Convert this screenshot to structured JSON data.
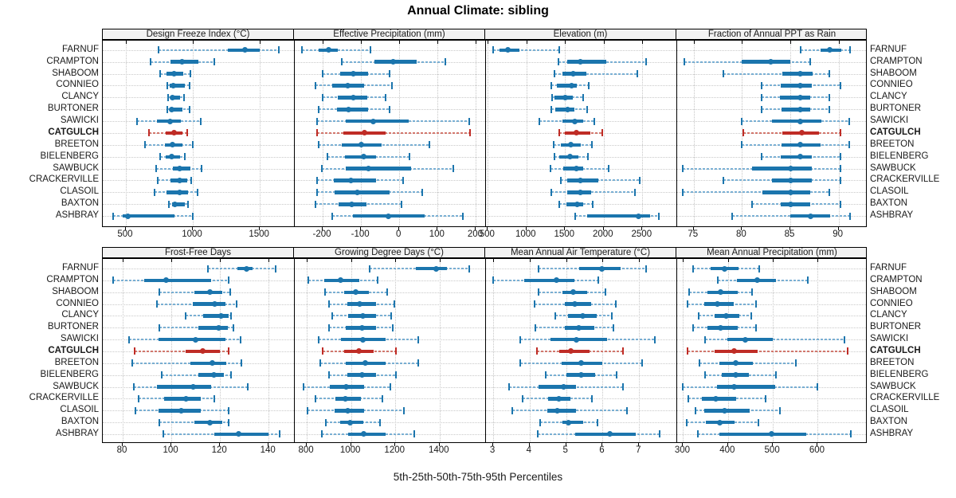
{
  "title": "Annual Climate: sibling",
  "footer": "5th-25th-50th-75th-95th Percentiles",
  "percentiles": [
    "5th",
    "25th",
    "50th",
    "75th",
    "95th"
  ],
  "stations": [
    "FARNUF",
    "CRAMPTON",
    "SHABOOM",
    "CONNIEO",
    "CLANCY",
    "BURTONER",
    "SAWICKI",
    "CATGULCH",
    "BREETON",
    "BIELENBERG",
    "SAWBUCK",
    "CRACKERVILLE",
    "CLASOIL",
    "BAXTON",
    "ASHBRAY"
  ],
  "highlight_station": "CATGULCH",
  "colors": {
    "series": "#1b75ad",
    "series_light": "#79afd3",
    "highlight": "#bf2c26",
    "highlight_light": "#d2766c",
    "grid": "#c6c6c6",
    "strip_bg": "#f2f2f2",
    "border": "#000000"
  },
  "chart_data": [
    {
      "type": "dotplot-interval",
      "title": "Design Freeze Index (°C)",
      "ticks": [
        500,
        1000,
        1500
      ],
      "xlim": [
        328,
        1755
      ],
      "values": [
        [
          745,
          1260,
          1390,
          1500,
          1645
        ],
        [
          685,
          835,
          920,
          1040,
          1160
        ],
        [
          755,
          805,
          860,
          930,
          980
        ],
        [
          810,
          830,
          855,
          940,
          975
        ],
        [
          815,
          833,
          848,
          903,
          933
        ],
        [
          810,
          828,
          843,
          923,
          978
        ],
        [
          585,
          735,
          833,
          913,
          1060
        ],
        [
          670,
          800,
          863,
          923,
          958
        ],
        [
          645,
          790,
          847,
          923,
          1000
        ],
        [
          755,
          795,
          843,
          905,
          938
        ],
        [
          725,
          850,
          900,
          980,
          1065
        ],
        [
          740,
          835,
          903,
          957,
          990
        ],
        [
          715,
          803,
          899,
          962,
          1037
        ],
        [
          823,
          843,
          869,
          940,
          966
        ],
        [
          405,
          478,
          516,
          863,
          998
        ]
      ]
    },
    {
      "type": "dotplot-interval",
      "title": "Effective Precipitation (mm)",
      "ticks": [
        -200,
        -100,
        0,
        100,
        200
      ],
      "xlim": [
        -275,
        224
      ],
      "values": [
        [
          -255,
          -210,
          -185,
          -160,
          -75
        ],
        [
          -150,
          -65,
          -17,
          45,
          120
        ],
        [
          -200,
          -155,
          -120,
          -81,
          -25
        ],
        [
          -218,
          -175,
          -134,
          -91,
          -20
        ],
        [
          -200,
          -160,
          -120,
          -83,
          -35
        ],
        [
          -210,
          -162,
          -133,
          -82,
          -25
        ],
        [
          -215,
          -140,
          -69,
          24,
          183
        ],
        [
          -215,
          -147,
          -91,
          -36,
          185
        ],
        [
          -210,
          -151,
          -100,
          -47,
          78
        ],
        [
          -188,
          -141,
          -94,
          -61,
          27
        ],
        [
          -202,
          -140,
          -80,
          31,
          140
        ],
        [
          -214,
          -171,
          -126,
          -60,
          10
        ],
        [
          -214,
          -169,
          -110,
          -26,
          60
        ],
        [
          -218,
          -158,
          -124,
          -86,
          6
        ],
        [
          -176,
          -122,
          -28,
          67,
          165
        ]
      ]
    },
    {
      "type": "dotplot-interval",
      "title": "Elevation (m)",
      "ticks": [
        500,
        1000,
        1500,
        2000,
        2500
      ],
      "xlim": [
        466,
        2940
      ],
      "values": [
        [
          570,
          655,
          760,
          912,
          1420
        ],
        [
          1410,
          1530,
          1695,
          2030,
          2550
        ],
        [
          1365,
          1462,
          1607,
          1771,
          2430
        ],
        [
          1320,
          1395,
          1583,
          1651,
          1805
        ],
        [
          1330,
          1366,
          1504,
          1600,
          1737
        ],
        [
          1320,
          1376,
          1538,
          1617,
          1782
        ],
        [
          1165,
          1462,
          1624,
          1737,
          1875
        ],
        [
          1420,
          1497,
          1645,
          1823,
          1985
        ],
        [
          1350,
          1445,
          1576,
          1703,
          1850
        ],
        [
          1360,
          1428,
          1560,
          1668,
          1800
        ],
        [
          1315,
          1480,
          1645,
          1737,
          2065
        ],
        [
          1450,
          1530,
          1696,
          1926,
          2470
        ],
        [
          1325,
          1530,
          1700,
          1840,
          2400
        ],
        [
          1420,
          1514,
          1660,
          1737,
          1858
        ],
        [
          1627,
          1790,
          2452,
          2603,
          2717
        ]
      ]
    },
    {
      "type": "dotplot-interval",
      "title": "Fraction of Annual PPT as Rain",
      "ticks": [
        75,
        80,
        85,
        90
      ],
      "xlim": [
        73.2,
        93.0
      ],
      "values": [
        [
          86.1,
          88.1,
          89.1,
          90.3,
          91.2
        ],
        [
          74.0,
          80.0,
          83.0,
          85.0,
          87.1
        ],
        [
          78.1,
          84.2,
          86.0,
          87.3,
          89.0
        ],
        [
          82.0,
          84.0,
          86.0,
          87.2,
          90.2
        ],
        [
          82.0,
          83.9,
          86.0,
          87.1,
          89.0
        ],
        [
          82.0,
          84.1,
          86.0,
          87.1,
          89.0
        ],
        [
          80.0,
          83.1,
          86.0,
          88.2,
          91.1
        ],
        [
          80.1,
          84.2,
          86.2,
          88.0,
          90.2
        ],
        [
          80.0,
          84.1,
          86.0,
          88.1,
          91.1
        ],
        [
          82.0,
          84.0,
          86.0,
          87.2,
          90.2
        ],
        [
          73.9,
          81.0,
          85.0,
          87.2,
          90.2
        ],
        [
          78.1,
          83.1,
          85.0,
          87.2,
          90.2
        ],
        [
          73.9,
          82.1,
          85.0,
          87.1,
          89.0
        ],
        [
          81.0,
          84.0,
          85.0,
          87.1,
          90.2
        ],
        [
          79.0,
          85.0,
          87.1,
          89.1,
          91.2
        ]
      ]
    },
    {
      "type": "dotplot-interval",
      "title": "Frost-Free Days",
      "ticks": [
        80,
        100,
        120,
        140
      ],
      "xlim": [
        71.8,
        150.4
      ],
      "values": [
        [
          115,
          127,
          131,
          133.5,
          143
        ],
        [
          76,
          88.7,
          97.7,
          116.4,
          123.7
        ],
        [
          95,
          109.5,
          115.7,
          120.8,
          124.3
        ],
        [
          94,
          108.7,
          117.7,
          122.1,
          126.8
        ],
        [
          106,
          113,
          120.5,
          123.5,
          124.6
        ],
        [
          95,
          111.1,
          119.6,
          123.2,
          125.4
        ],
        [
          82.7,
          94.8,
          109.8,
          122.1,
          128.6
        ],
        [
          85,
          105.7,
          112.8,
          119.9,
          123.7
        ],
        [
          84,
          107.9,
          116.8,
          122.6,
          128.9
        ],
        [
          96,
          111.1,
          117.5,
          121.5,
          124.5
        ],
        [
          84.7,
          94.2,
          109,
          116.4,
          131.4
        ],
        [
          86.6,
          96.9,
          105.9,
          112.2,
          117.7
        ],
        [
          85.1,
          94.8,
          104,
          112,
          123.7
        ],
        [
          95,
          109.3,
          115.9,
          120.8,
          123.5
        ],
        [
          96.7,
          117.5,
          127.8,
          140,
          144.5
        ]
      ]
    },
    {
      "type": "dotplot-interval",
      "title": "Growing Degree Days (°C)",
      "ticks": [
        800,
        1000,
        1200,
        1400
      ],
      "xlim": [
        742,
        1606
      ],
      "values": [
        [
          1085,
          1294,
          1384,
          1432,
          1534
        ],
        [
          808,
          880,
          952,
          1036,
          1120
        ],
        [
          884,
          968,
          1022,
          1082,
          1162
        ],
        [
          902,
          982,
          1040,
          1112,
          1196
        ],
        [
          916,
          988,
          1054,
          1114,
          1180
        ],
        [
          902,
          976,
          1048,
          1114,
          1189
        ],
        [
          854,
          956,
          1054,
          1156,
          1304
        ],
        [
          872,
          970,
          1034,
          1102,
          1204
        ],
        [
          862,
          976,
          1064,
          1156,
          1304
        ],
        [
          902,
          982,
          1051,
          1114,
          1202
        ],
        [
          784,
          904,
          979,
          1058,
          1178
        ],
        [
          838,
          928,
          974,
          1046,
          1142
        ],
        [
          802,
          926,
          985,
          1060,
          1240
        ],
        [
          886,
          952,
          997,
          1054,
          1132
        ],
        [
          868,
          988,
          1057,
          1156,
          1286
        ]
      ]
    },
    {
      "type": "dotplot-interval",
      "title": "Mean Annual Air Temperature (°C)",
      "ticks": [
        3,
        4,
        5,
        6,
        7
      ],
      "xlim": [
        2.78,
        8.02
      ],
      "values": [
        [
          4.25,
          5.36,
          5.98,
          6.49,
          7.18
        ],
        [
          3.0,
          3.86,
          4.73,
          5.22,
          5.89
        ],
        [
          4.24,
          4.89,
          5.2,
          5.58,
          6.07
        ],
        [
          4.13,
          4.96,
          5.24,
          5.69,
          6.35
        ],
        [
          4.71,
          5.06,
          5.46,
          5.84,
          6.26
        ],
        [
          4.15,
          4.96,
          5.34,
          5.78,
          6.29
        ],
        [
          3.73,
          4.56,
          5.29,
          6.13,
          7.42
        ],
        [
          4.19,
          4.82,
          5.13,
          5.63,
          6.55
        ],
        [
          3.73,
          4.88,
          5.4,
          5.98,
          7.09
        ],
        [
          4.44,
          5.0,
          5.4,
          5.8,
          6.38
        ],
        [
          3.44,
          4.24,
          4.93,
          5.28,
          6.56
        ],
        [
          3.81,
          4.51,
          4.8,
          5.12,
          5.71
        ],
        [
          3.52,
          4.49,
          4.76,
          5.28,
          6.66
        ],
        [
          4.29,
          4.89,
          5.07,
          5.46,
          5.85
        ],
        [
          4.22,
          5.24,
          6.2,
          6.91,
          7.57
        ]
      ]
    },
    {
      "type": "dotplot-interval",
      "title": "Mean Annual Precipitation (mm)",
      "ticks": [
        300,
        400,
        500,
        600
      ],
      "xlim": [
        285,
        711
      ],
      "values": [
        [
          322,
          362,
          393,
          424,
          470
        ],
        [
          377,
          420,
          466,
          507,
          578
        ],
        [
          314,
          355,
          383,
          421,
          454
        ],
        [
          310,
          347,
          377,
          412,
          462
        ],
        [
          334,
          371,
          396,
          426,
          452
        ],
        [
          322,
          355,
          383,
          422,
          462
        ],
        [
          349,
          399,
          438,
          499,
          659
        ],
        [
          310,
          371,
          414,
          466,
          667
        ],
        [
          336,
          381,
          418,
          456,
          551
        ],
        [
          349,
          387,
          418,
          446,
          507
        ],
        [
          300,
          375,
          414,
          505,
          599
        ],
        [
          312,
          341,
          373,
          418,
          483
        ],
        [
          327,
          347,
          392,
          448,
          516
        ],
        [
          308,
          351,
          381,
          414,
          467
        ],
        [
          333,
          381,
          497,
          575,
          673
        ]
      ]
    }
  ]
}
